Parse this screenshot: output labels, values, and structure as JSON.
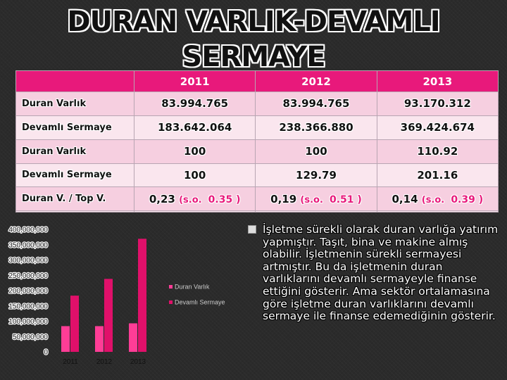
{
  "title_line1": "DURAN VARLIK-DEVAMLI",
  "title_line2": "SERMAYE",
  "table": {
    "years": [
      "2011",
      "2012",
      "2013"
    ],
    "rows": [
      {
        "label": "Duran Varlık",
        "values": [
          "83.994.765",
          "83.994.765",
          "93.170.312"
        ]
      },
      {
        "label": "Devamlı Sermaye",
        "values": [
          "183.642.064",
          "238.366.880",
          "369.424.674"
        ]
      },
      {
        "label": "Duran Varlık",
        "values": [
          "100",
          "100",
          "110.92"
        ]
      },
      {
        "label": "Devamlı Sermaye",
        "values": [
          "100",
          "129.79",
          "201.16"
        ]
      },
      {
        "label": "Duran V. / Top V.",
        "values": [
          "0,23",
          "0,19",
          "0,14"
        ],
        "sector_prefix": "(s.o.",
        "sector_values": [
          "0.35 )",
          "0.51 )",
          "0.39  )"
        ]
      }
    ]
  },
  "chart_data": {
    "type": "bar",
    "categories": [
      "2011",
      "2012",
      "2013"
    ],
    "series": [
      {
        "name": "Duran Varlık",
        "values": [
          83994765,
          83994765,
          93170312
        ],
        "color": "#ff3d96"
      },
      {
        "name": "Devamlı Sermaye",
        "values": [
          183642064,
          238366880,
          369424674
        ],
        "color": "#e0106a"
      }
    ],
    "ylim": [
      0,
      400000000
    ],
    "yticks": [
      "0",
      "50,000,000",
      "100,000,000",
      "150,000,000",
      "200,000,000",
      "250,000,000",
      "300,000,000",
      "350,000,000",
      "400,000,000"
    ],
    "legend": "right",
    "grid": false
  },
  "bullet": {
    "icon": "box-bullet-icon",
    "text": "İşletme sürekli olarak duran varlığa yatırım yapmıştır. Taşıt, bina ve makine almış olabilir. İşletmenin sürekli sermayesi artmıştır. Bu da işletmenin duran varlıklarını devamlı sermayeyle finanse ettiğini gösterir. Ama sektör ortalamasına göre işletme duran varlıklarını devamlı sermaye ile finanse edemediğinin gösterir."
  }
}
